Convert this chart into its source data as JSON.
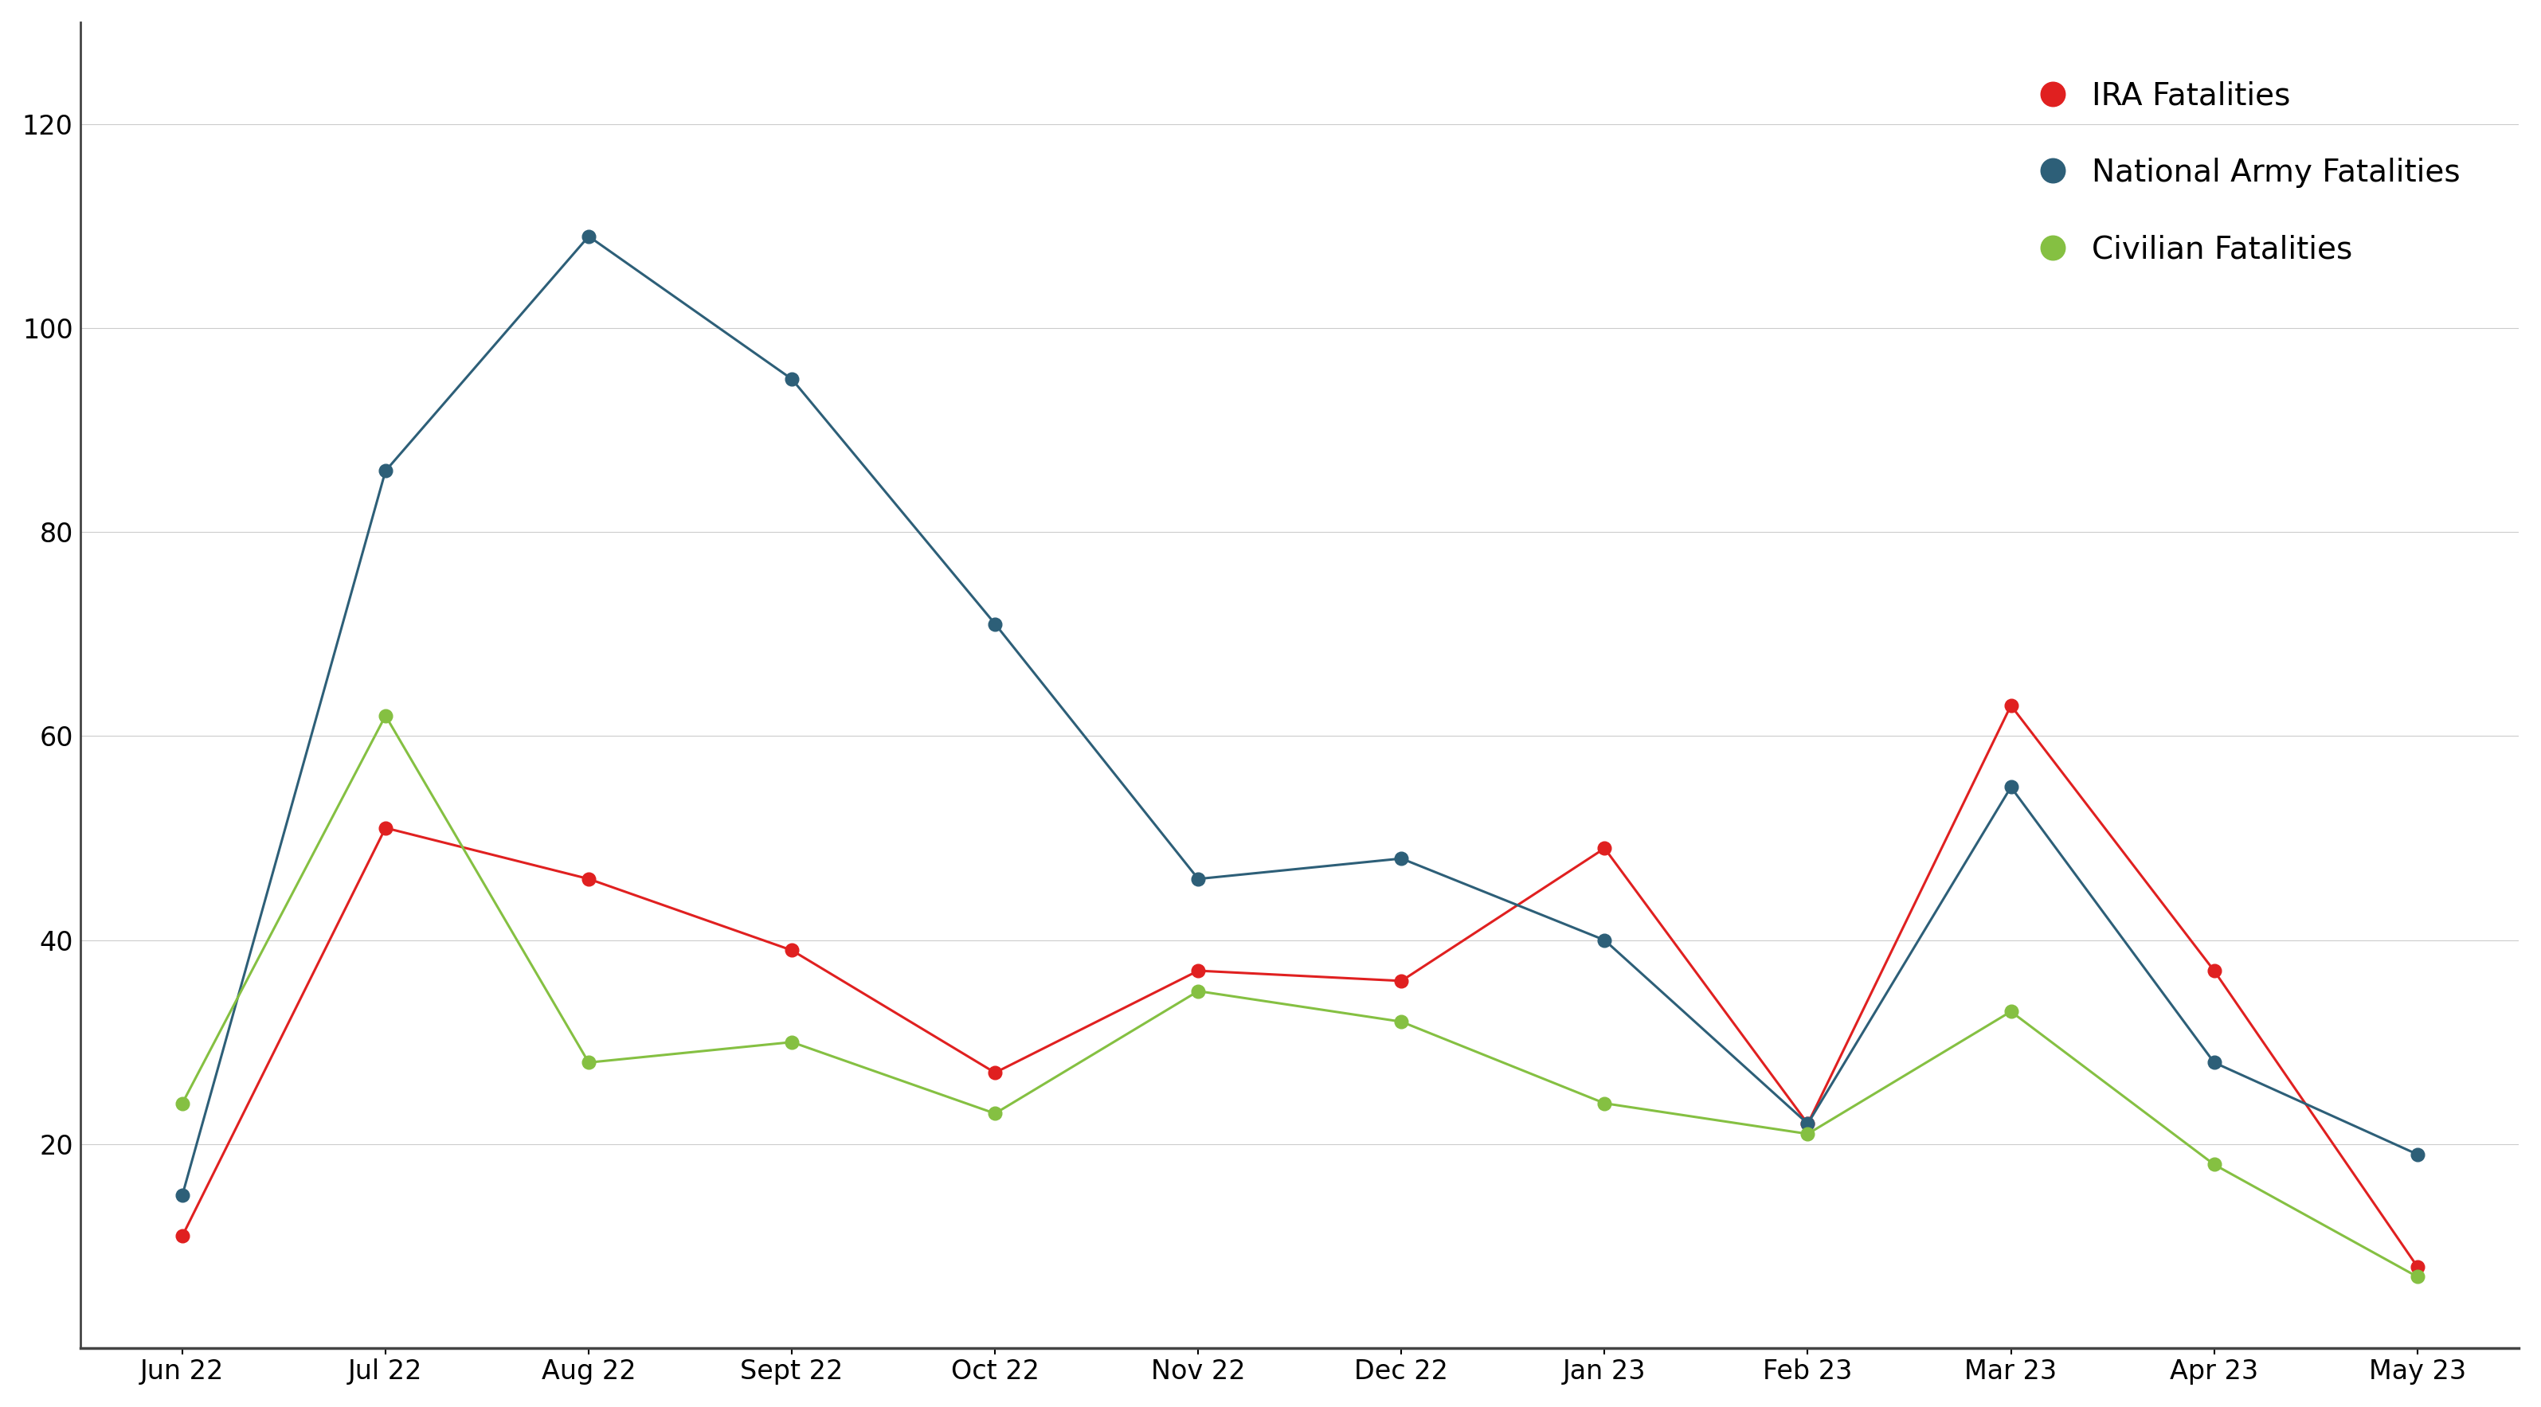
{
  "months": [
    "Jun 22",
    "Jul 22",
    "Aug 22",
    "Sept 22",
    "Oct 22",
    "Nov 22",
    "Dec 22",
    "Jan 23",
    "Feb 23",
    "Mar 23",
    "Apr 23",
    "May 23"
  ],
  "ira": [
    11,
    51,
    46,
    39,
    27,
    37,
    36,
    49,
    22,
    63,
    37,
    8
  ],
  "national_army": [
    15,
    86,
    109,
    95,
    71,
    46,
    48,
    40,
    22,
    55,
    28,
    19
  ],
  "civilian": [
    24,
    62,
    28,
    30,
    23,
    35,
    32,
    24,
    21,
    33,
    18,
    7
  ],
  "ira_color": "#e02020",
  "national_army_color": "#2d5f78",
  "civilian_color": "#85c042",
  "ira_label": "IRA Fatalities",
  "national_army_label": "National Army Fatalities",
  "civilian_label": "Civilian Fatalities",
  "ylim": [
    0,
    130
  ],
  "yticks": [
    20,
    40,
    60,
    80,
    100,
    120
  ],
  "background_color": "#ffffff",
  "grid_color": "#cccccc",
  "marker_size": 12,
  "line_width": 2.2,
  "legend_fontsize": 28,
  "tick_fontsize": 24,
  "legend_marker_size": 22
}
